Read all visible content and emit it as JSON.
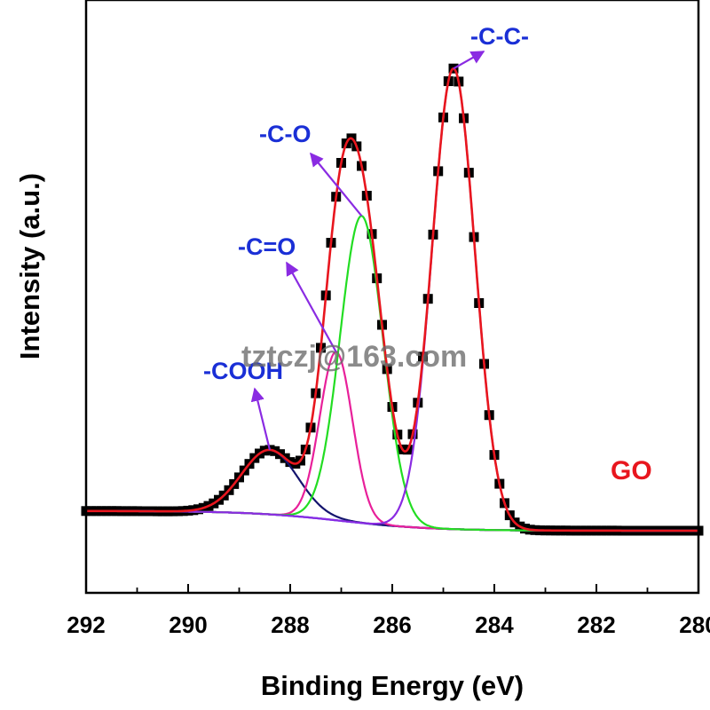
{
  "chart_data": {
    "type": "line",
    "xlabel": "Binding Energy (eV)",
    "ylabel": "Intensity (a.u.)",
    "xlim": [
      292,
      280
    ],
    "x_reversed": true,
    "ylim": [
      0,
      1.05
    ],
    "grid": false,
    "x_ticks": [
      "292",
      "290",
      "288",
      "286",
      "284",
      "282",
      "280"
    ],
    "sample_label": "GO",
    "watermark": "tztczj@163.com",
    "colors": {
      "data_points": "#000000",
      "envelope": "#e8161e",
      "baseline": "#1a1aff",
      "cooh": "#14146e",
      "c_double_o": "#e8209a",
      "c_o": "#22dd22",
      "c_c": "#8a2be2",
      "arrow": "#8a2be2",
      "annotation_text": "#1a2fd6",
      "sample_label": "#e8161e"
    },
    "components": [
      {
        "label": "-COOH",
        "center": 288.4,
        "height": 0.13,
        "width": 0.55
      },
      {
        "label": "-C=O",
        "center": 287.1,
        "height": 0.34,
        "width": 0.32
      },
      {
        "label": "-C-O",
        "center": 286.6,
        "height": 0.62,
        "width": 0.42
      },
      {
        "label": "-C-C-",
        "center": 284.8,
        "height": 0.93,
        "width": 0.42
      }
    ],
    "baseline": {
      "high_side": 0.04,
      "low_side": 0.0,
      "transition_center": 287.0,
      "transition_width": 0.9
    },
    "raw_data_markers": "every 0.1 eV from 292 to 280, following envelope"
  }
}
